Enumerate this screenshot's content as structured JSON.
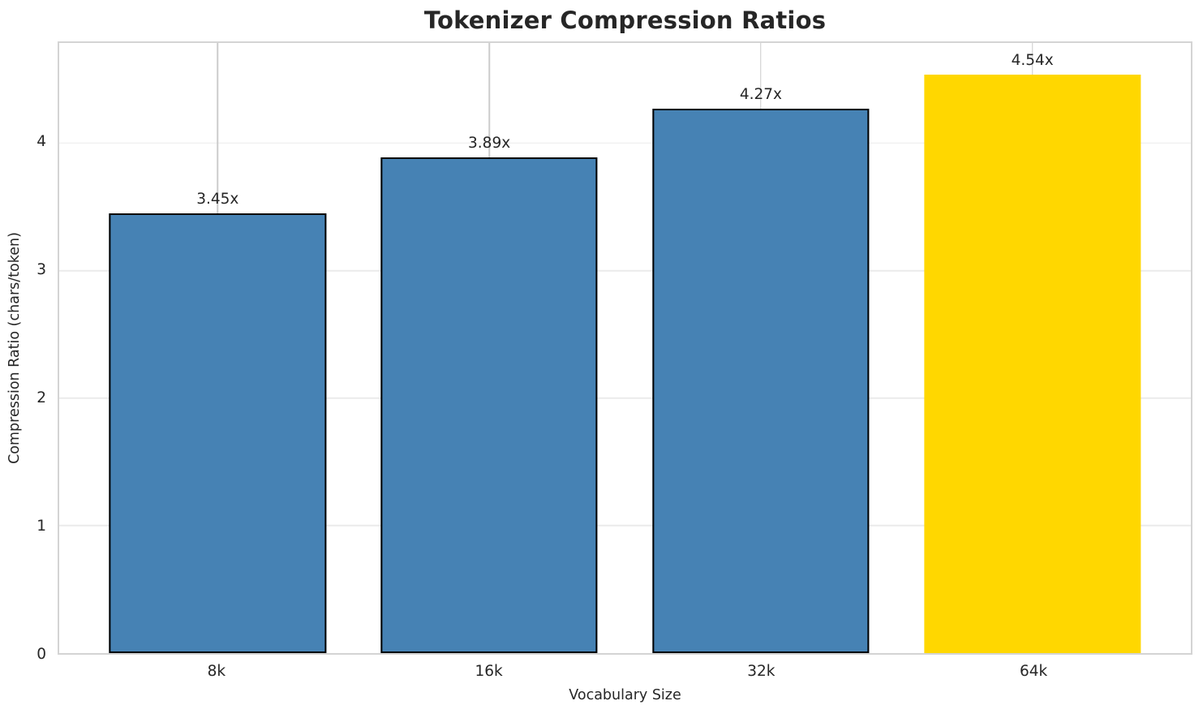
{
  "chart_data": {
    "type": "bar",
    "title": "Tokenizer Compression Ratios",
    "xlabel": "Vocabulary Size",
    "ylabel": "Compression Ratio (chars/token)",
    "categories": [
      "8k",
      "16k",
      "32k",
      "64k"
    ],
    "values": [
      3.45,
      3.89,
      4.27,
      4.54
    ],
    "bar_labels": [
      "3.45x",
      "3.89x",
      "4.27x",
      "4.54x"
    ],
    "bar_colors": [
      "#4682B4",
      "#4682B4",
      "#4682B4",
      "#FFD700"
    ],
    "bar_edge_colors": [
      "#000000",
      "#000000",
      "#000000",
      "none"
    ],
    "highlight_index": 3,
    "yticks": [
      0,
      1,
      2,
      3,
      4
    ],
    "ylim": [
      0,
      4.785
    ],
    "grid": true,
    "legend": "none",
    "colors": {
      "text": "#262626",
      "spine": "#d4d4d4",
      "vgrid": "#cccccc",
      "hgrid": "#ebebeb",
      "background": "#ffffff"
    }
  }
}
